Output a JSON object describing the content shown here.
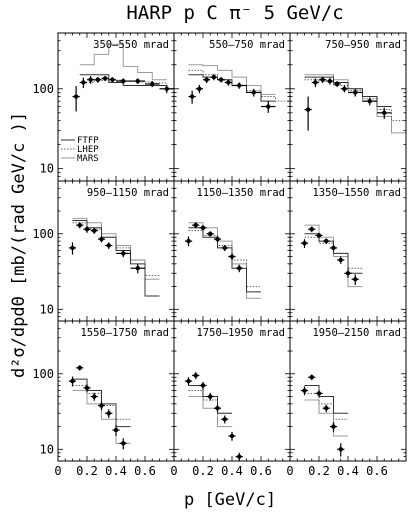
{
  "chart_data": {
    "type": "scatter",
    "title": "HARP p C π⁻ 5 GeV/c",
    "xlabel": "p [GeV/c]",
    "ylabel": "d²σ/dpdΘ [mb/(rad GeV/c )]",
    "xlim": [
      0,
      0.8
    ],
    "ylim": [
      7,
      500
    ],
    "yscale": "log",
    "x_ticks": [
      0,
      0.2,
      0.4,
      0.6
    ],
    "x_tick_labels": [
      "0",
      "0.2",
      "0.4",
      "0.6"
    ],
    "y_ticks": [
      10,
      100
    ],
    "y_tick_labels": [
      "10",
      "100"
    ],
    "grid": false,
    "legend_position": "bottom-left of top-left panel",
    "legend": [
      {
        "name": "FTFP",
        "style": "solid",
        "color": "#333333"
      },
      {
        "name": "LHEP",
        "style": "dotted",
        "color": "#666666"
      },
      {
        "name": "MARS",
        "style": "solid",
        "color": "#9a9a9a"
      }
    ],
    "panels": [
      {
        "label": "350–550 mrad",
        "data": {
          "x": [
            0.125,
            0.175,
            0.225,
            0.275,
            0.325,
            0.375,
            0.45,
            0.55,
            0.65,
            0.75
          ],
          "y": [
            80,
            120,
            130,
            130,
            135,
            130,
            125,
            125,
            115,
            100
          ],
          "xerr": [
            0.025,
            0.025,
            0.025,
            0.025,
            0.025,
            0.025,
            0.05,
            0.05,
            0.05,
            0.05
          ],
          "yerr": [
            28,
            18,
            14,
            11,
            10,
            10,
            10,
            10,
            10,
            12
          ]
        },
        "ftfp": {
          "edges": [
            0.15,
            0.25,
            0.35,
            0.45,
            0.55,
            0.65,
            0.75
          ],
          "values": [
            150,
            150,
            120,
            110,
            110,
            110
          ]
        },
        "lhep": {
          "edges": [
            0.15,
            0.25,
            0.35,
            0.45,
            0.55,
            0.65,
            0.75
          ],
          "values": [
            120,
            128,
            128,
            125,
            122,
            118
          ]
        },
        "mars": {
          "edges": [
            0.15,
            0.25,
            0.35,
            0.45,
            0.55,
            0.65,
            0.75
          ],
          "values": [
            200,
            270,
            360,
            190,
            160,
            130
          ]
        }
      },
      {
        "label": "550–750 mrad",
        "data": {
          "x": [
            0.125,
            0.175,
            0.225,
            0.275,
            0.325,
            0.375,
            0.45,
            0.55,
            0.65
          ],
          "y": [
            80,
            100,
            130,
            140,
            130,
            120,
            110,
            90,
            60
          ],
          "xerr": [
            0.025,
            0.025,
            0.025,
            0.025,
            0.025,
            0.025,
            0.05,
            0.05,
            0.05
          ],
          "yerr": [
            15,
            12,
            12,
            12,
            10,
            10,
            10,
            10,
            10
          ]
        },
        "ftfp": {
          "edges": [
            0.1,
            0.2,
            0.3,
            0.4,
            0.5,
            0.6,
            0.7
          ],
          "values": [
            150,
            140,
            130,
            110,
            90,
            70
          ]
        },
        "lhep": {
          "edges": [
            0.1,
            0.2,
            0.3,
            0.4,
            0.5,
            0.6,
            0.7,
            0.8
          ],
          "values": [
            170,
            150,
            130,
            110,
            95,
            80,
            70
          ]
        },
        "mars": {
          "edges": [
            0.1,
            0.2,
            0.3,
            0.4,
            0.5,
            0.6,
            0.7
          ],
          "values": [
            200,
            195,
            170,
            140,
            110,
            85
          ]
        }
      },
      {
        "label": "750–950 mrad",
        "data": {
          "x": [
            0.125,
            0.175,
            0.225,
            0.275,
            0.325,
            0.375,
            0.45,
            0.55,
            0.65
          ],
          "y": [
            55,
            120,
            130,
            125,
            115,
            100,
            90,
            70,
            50
          ],
          "xerr": [
            0.025,
            0.025,
            0.025,
            0.025,
            0.025,
            0.025,
            0.05,
            0.05,
            0.05
          ],
          "yerr": [
            25,
            15,
            12,
            12,
            10,
            10,
            10,
            8,
            8
          ]
        },
        "ftfp": {
          "edges": [
            0.1,
            0.2,
            0.3,
            0.4,
            0.5,
            0.6,
            0.7
          ],
          "values": [
            140,
            140,
            120,
            100,
            80,
            60
          ]
        },
        "lhep": {
          "edges": [
            0.1,
            0.2,
            0.3,
            0.4,
            0.5,
            0.6,
            0.7,
            0.8
          ],
          "values": [
            130,
            125,
            110,
            95,
            75,
            55,
            40
          ]
        },
        "mars": {
          "edges": [
            0.1,
            0.2,
            0.3,
            0.4,
            0.5,
            0.6,
            0.7,
            0.8
          ],
          "values": [
            150,
            150,
            130,
            100,
            70,
            45,
            28
          ]
        }
      },
      {
        "label": "950–1150 mrad",
        "data": {
          "x": [
            0.1,
            0.15,
            0.2,
            0.25,
            0.3,
            0.35,
            0.45,
            0.55
          ],
          "y": [
            65,
            130,
            115,
            110,
            85,
            70,
            55,
            35
          ],
          "xerr": [
            0.025,
            0.025,
            0.025,
            0.025,
            0.025,
            0.025,
            0.05,
            0.05
          ],
          "yerr": [
            12,
            12,
            12,
            10,
            8,
            7,
            6,
            5
          ]
        },
        "ftfp": {
          "edges": [
            0.1,
            0.2,
            0.3,
            0.4,
            0.5,
            0.6,
            0.7
          ],
          "values": [
            150,
            120,
            90,
            60,
            40,
            15
          ]
        },
        "lhep": {
          "edges": [
            0.1,
            0.2,
            0.3,
            0.4,
            0.5,
            0.6,
            0.7
          ],
          "values": [
            140,
            115,
            90,
            65,
            45,
            28
          ]
        },
        "mars": {
          "edges": [
            0.1,
            0.2,
            0.3,
            0.4,
            0.5,
            0.6,
            0.7
          ],
          "values": [
            160,
            140,
            100,
            70,
            45,
            25
          ]
        }
      },
      {
        "label": "1150–1350 mrad",
        "data": {
          "x": [
            0.1,
            0.15,
            0.2,
            0.25,
            0.3,
            0.35,
            0.4,
            0.45
          ],
          "y": [
            80,
            130,
            120,
            100,
            85,
            65,
            50,
            35
          ],
          "xerr": [
            0.025,
            0.025,
            0.025,
            0.025,
            0.025,
            0.025,
            0.025,
            0.025
          ],
          "yerr": [
            12,
            12,
            10,
            8,
            8,
            6,
            5,
            4
          ]
        },
        "ftfp": {
          "edges": [
            0.1,
            0.2,
            0.3,
            0.4,
            0.5,
            0.6
          ],
          "values": [
            120,
            90,
            65,
            35,
            17
          ]
        },
        "lhep": {
          "edges": [
            0.1,
            0.2,
            0.3,
            0.4,
            0.5,
            0.6
          ],
          "values": [
            110,
            95,
            70,
            45,
            20
          ]
        },
        "mars": {
          "edges": [
            0.1,
            0.2,
            0.3,
            0.4,
            0.5,
            0.6
          ],
          "values": [
            140,
            120,
            80,
            40,
            14
          ]
        }
      },
      {
        "label": "1350–1550 mrad",
        "data": {
          "x": [
            0.1,
            0.15,
            0.2,
            0.25,
            0.3,
            0.35,
            0.4,
            0.45
          ],
          "y": [
            75,
            115,
            95,
            80,
            65,
            45,
            30,
            25
          ],
          "xerr": [
            0.025,
            0.025,
            0.025,
            0.025,
            0.025,
            0.025,
            0.025,
            0.025
          ],
          "yerr": [
            10,
            10,
            8,
            7,
            6,
            5,
            4,
            4
          ]
        },
        "ftfp": {
          "edges": [
            0.1,
            0.2,
            0.3,
            0.4,
            0.5
          ],
          "values": [
            100,
            80,
            55,
            30
          ]
        },
        "lhep": {
          "edges": [
            0.1,
            0.2,
            0.3,
            0.4,
            0.5
          ],
          "values": [
            90,
            75,
            55,
            35
          ]
        },
        "mars": {
          "edges": [
            0.1,
            0.2,
            0.3,
            0.4,
            0.5
          ],
          "values": [
            130,
            90,
            50,
            20
          ]
        }
      },
      {
        "label": "1550–1750 mrad",
        "data": {
          "x": [
            0.1,
            0.15,
            0.2,
            0.25,
            0.3,
            0.35,
            0.4,
            0.45
          ],
          "y": [
            80,
            120,
            65,
            50,
            38,
            30,
            18,
            12
          ],
          "xerr": [
            0.025,
            0.025,
            0.025,
            0.025,
            0.025,
            0.025,
            0.025,
            0.025
          ],
          "yerr": [
            12,
            10,
            8,
            6,
            5,
            4,
            3,
            2
          ]
        },
        "ftfp": {
          "edges": [
            0.1,
            0.2,
            0.3,
            0.4,
            0.5
          ],
          "values": [
            85,
            60,
            40,
            20
          ]
        },
        "lhep": {
          "edges": [
            0.1,
            0.2,
            0.3,
            0.4,
            0.5
          ],
          "values": [
            70,
            55,
            38,
            25
          ]
        },
        "mars": {
          "edges": [
            0.1,
            0.2,
            0.3,
            0.4,
            0.5
          ],
          "values": [
            60,
            40,
            25,
            12
          ]
        }
      },
      {
        "label": "1750–1950 mrad",
        "data": {
          "x": [
            0.1,
            0.15,
            0.2,
            0.25,
            0.3,
            0.35,
            0.4,
            0.45
          ],
          "y": [
            80,
            95,
            70,
            50,
            35,
            25,
            15,
            8
          ],
          "xerr": [
            0.025,
            0.025,
            0.025,
            0.025,
            0.025,
            0.025,
            0.025,
            0.025
          ],
          "yerr": [
            10,
            10,
            8,
            6,
            4,
            3,
            2,
            1
          ]
        },
        "ftfp": {
          "edges": [
            0.1,
            0.2,
            0.3,
            0.4
          ],
          "values": [
            70,
            50,
            30
          ]
        },
        "lhep": {
          "edges": [
            0.1,
            0.2,
            0.3,
            0.4
          ],
          "values": [
            60,
            45,
            30
          ]
        },
        "mars": {
          "edges": [
            0.1,
            0.2,
            0.3,
            0.4
          ],
          "values": [
            50,
            35,
            20
          ]
        }
      },
      {
        "label": "1950–2150 mrad",
        "data": {
          "x": [
            0.1,
            0.15,
            0.2,
            0.25,
            0.3,
            0.35
          ],
          "y": [
            60,
            90,
            55,
            35,
            20,
            10
          ],
          "xerr": [
            0.025,
            0.025,
            0.025,
            0.025,
            0.025,
            0.025
          ],
          "yerr": [
            8,
            8,
            6,
            4,
            3,
            2
          ]
        },
        "ftfp": {
          "edges": [
            0.1,
            0.2,
            0.3,
            0.4
          ],
          "values": [
            70,
            50,
            30
          ]
        },
        "lhep": {
          "edges": [
            0.1,
            0.2,
            0.3,
            0.4
          ],
          "values": [
            55,
            40,
            25
          ]
        },
        "mars": {
          "edges": [
            0.1,
            0.2,
            0.3,
            0.4
          ],
          "values": [
            45,
            30,
            15
          ]
        }
      }
    ]
  }
}
